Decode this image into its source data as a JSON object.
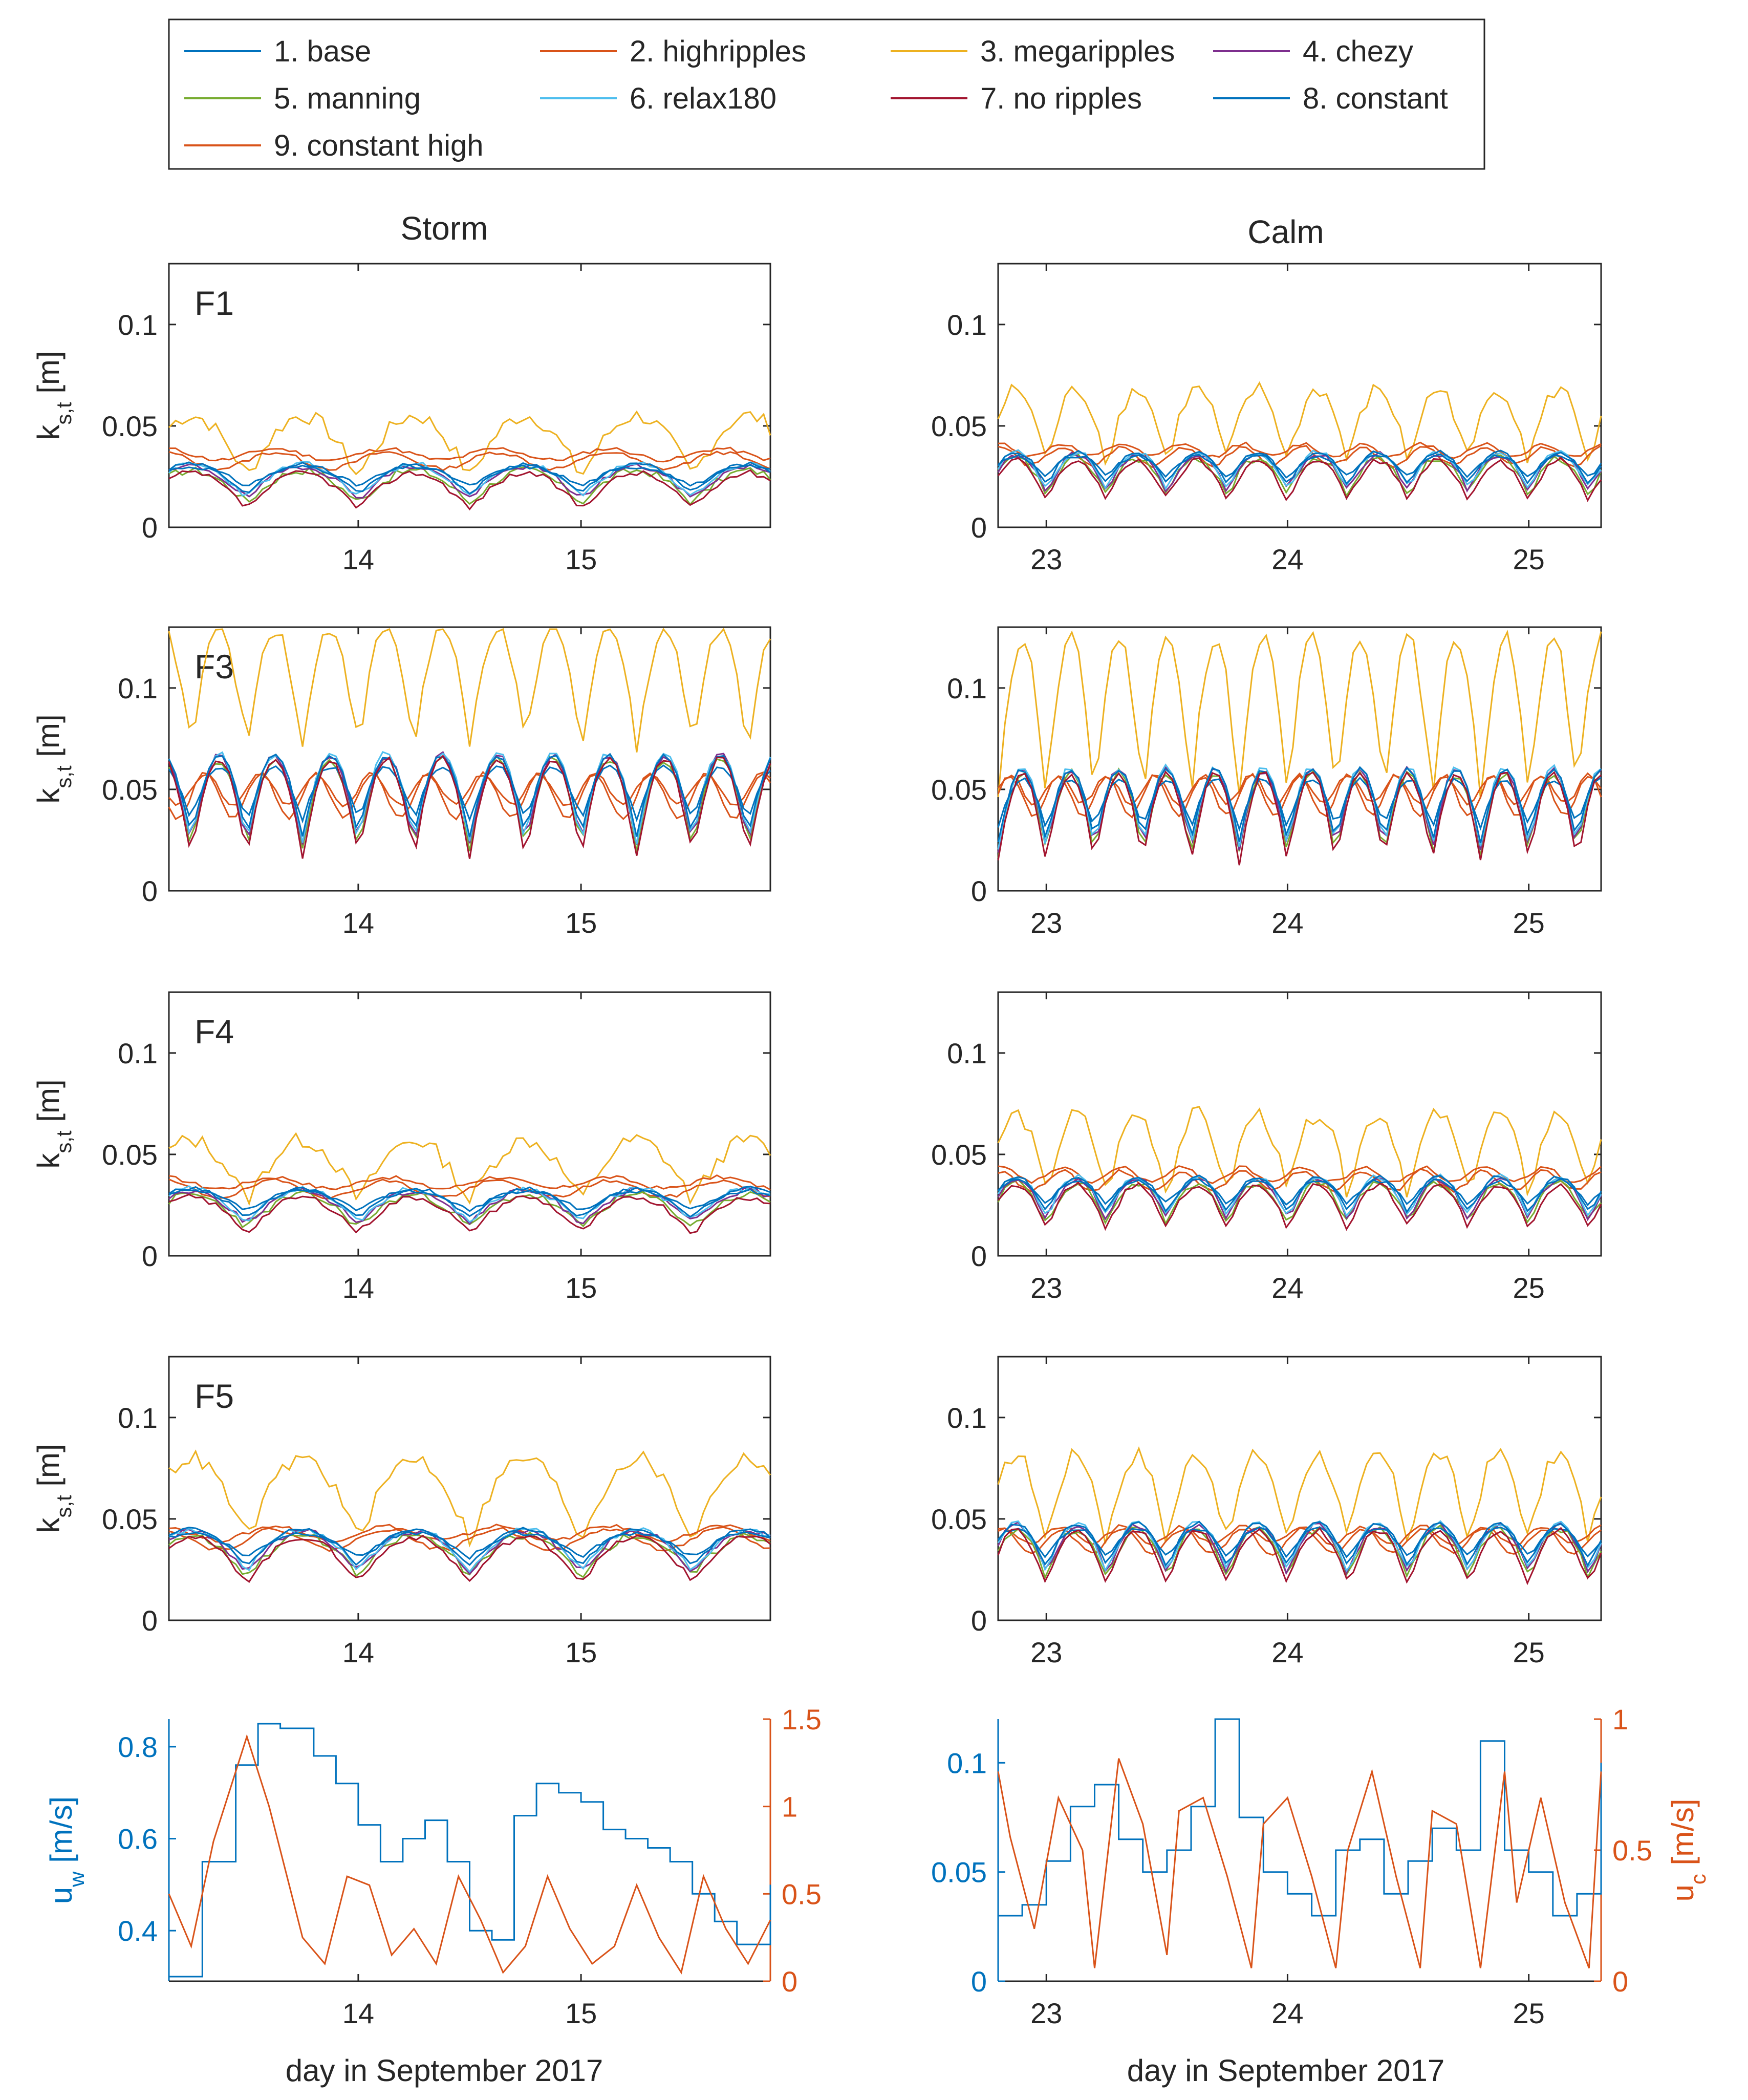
{
  "legend": {
    "items": [
      {
        "label": "1. base",
        "color": "#0072BD"
      },
      {
        "label": "2. highripples",
        "color": "#D95319"
      },
      {
        "label": "3. megaripples",
        "color": "#EDB120"
      },
      {
        "label": "4. chezy",
        "color": "#7E2F8E"
      },
      {
        "label": "5. manning",
        "color": "#77AC30"
      },
      {
        "label": "6. relax180",
        "color": "#4DBEEE"
      },
      {
        "label": "7. no ripples",
        "color": "#A2142F"
      },
      {
        "label": "8. constant",
        "color": "#0072BD"
      },
      {
        "label": "9. constant high",
        "color": "#D95319"
      }
    ]
  },
  "columns": {
    "storm_title": "Storm",
    "calm_title": "Calm"
  },
  "chart_data": {
    "type": "line",
    "ks_ylabel_main": "k",
    "ks_ylabel_sub": "s,t",
    "ks_ylabel_unit": "[m]",
    "ks_ylim": [
      0,
      0.13
    ],
    "ks_yticks": [
      "0",
      "0.05",
      "0.1"
    ],
    "storm_xlim": [
      13.15,
      15.85
    ],
    "calm_xlim": [
      22.8,
      25.3
    ],
    "storm_xticks": [
      "14",
      "15"
    ],
    "calm_xticks": [
      "23",
      "24",
      "25"
    ],
    "rows": [
      {
        "label": "F1",
        "storm": {
          "base": 0.022,
          "amp": 0.008,
          "period": 0.5,
          "mega_base": 0.04,
          "mega_amp": 0.015,
          "high_base": 0.036
        },
        "calm": {
          "base": 0.027,
          "amp": 0.009,
          "period": 0.25,
          "mega_base": 0.05,
          "mega_amp": 0.018,
          "high_base": 0.038
        }
      },
      {
        "label": "F3",
        "storm": {
          "base": 0.045,
          "amp": 0.022,
          "period": 0.25,
          "mega_base": 0.1,
          "mega_amp": 0.03,
          "high_base": 0.05
        },
        "calm": {
          "base": 0.04,
          "amp": 0.02,
          "period": 0.2,
          "mega_base": 0.085,
          "mega_amp": 0.04,
          "high_base": 0.05
        }
      },
      {
        "label": "F4",
        "storm": {
          "base": 0.024,
          "amp": 0.008,
          "period": 0.5,
          "mega_base": 0.042,
          "mega_amp": 0.015,
          "high_base": 0.036
        },
        "calm": {
          "base": 0.028,
          "amp": 0.01,
          "period": 0.25,
          "mega_base": 0.05,
          "mega_amp": 0.02,
          "high_base": 0.04
        }
      },
      {
        "label": "F5",
        "storm": {
          "base": 0.034,
          "amp": 0.01,
          "period": 0.5,
          "mega_base": 0.06,
          "mega_amp": 0.02,
          "high_base": 0.043
        },
        "calm": {
          "base": 0.035,
          "amp": 0.012,
          "period": 0.25,
          "mega_base": 0.06,
          "mega_amp": 0.022,
          "high_base": 0.042
        }
      }
    ],
    "velocity": {
      "uw_label_main": "u",
      "uw_label_sub": "w",
      "uc_label_main": "u",
      "uc_label_sub": "c",
      "unit": "[m/s]",
      "storm": {
        "uw_ylim": [
          0.29,
          0.86
        ],
        "uw_yticks": [
          "0.4",
          "0.6",
          "0.8"
        ],
        "uc_ylim": [
          0,
          1.5
        ],
        "uc_yticks": [
          "0",
          "0.5",
          "1",
          "1.5"
        ],
        "uw": {
          "x": [
            13.15,
            13.3,
            13.45,
            13.55,
            13.65,
            13.8,
            13.9,
            14.0,
            14.1,
            14.2,
            14.3,
            14.4,
            14.5,
            14.6,
            14.7,
            14.8,
            14.9,
            15.0,
            15.1,
            15.2,
            15.3,
            15.4,
            15.5,
            15.6,
            15.7,
            15.85
          ],
          "y": [
            0.3,
            0.55,
            0.76,
            0.85,
            0.84,
            0.78,
            0.72,
            0.63,
            0.55,
            0.6,
            0.64,
            0.55,
            0.4,
            0.38,
            0.65,
            0.72,
            0.7,
            0.68,
            0.62,
            0.6,
            0.58,
            0.55,
            0.48,
            0.42,
            0.37,
            0.5
          ]
        },
        "uc": {
          "x": [
            13.15,
            13.25,
            13.35,
            13.5,
            13.6,
            13.7,
            13.75,
            13.85,
            13.95,
            14.05,
            14.15,
            14.25,
            14.35,
            14.45,
            14.55,
            14.65,
            14.75,
            14.85,
            14.95,
            15.05,
            15.15,
            15.25,
            15.35,
            15.45,
            15.55,
            15.65,
            15.75,
            15.85
          ],
          "y": [
            0.5,
            0.2,
            0.8,
            1.4,
            1.0,
            0.5,
            0.25,
            0.1,
            0.6,
            0.55,
            0.15,
            0.3,
            0.1,
            0.6,
            0.35,
            0.05,
            0.2,
            0.6,
            0.3,
            0.1,
            0.2,
            0.55,
            0.25,
            0.05,
            0.6,
            0.3,
            0.1,
            0.35
          ]
        }
      },
      "calm": {
        "uw_ylim": [
          0,
          0.12
        ],
        "uw_yticks": [
          "0",
          "0.05",
          "0.1"
        ],
        "uc_ylim": [
          0,
          1
        ],
        "uc_yticks": [
          "0",
          "0.5",
          "1"
        ],
        "uw": {
          "x": [
            22.8,
            22.9,
            23.0,
            23.1,
            23.2,
            23.3,
            23.4,
            23.5,
            23.6,
            23.7,
            23.8,
            23.9,
            24.0,
            24.1,
            24.2,
            24.3,
            24.4,
            24.5,
            24.6,
            24.7,
            24.8,
            24.9,
            25.0,
            25.1,
            25.2,
            25.3
          ],
          "y": [
            0.03,
            0.035,
            0.055,
            0.08,
            0.09,
            0.065,
            0.05,
            0.06,
            0.08,
            0.12,
            0.075,
            0.05,
            0.04,
            0.03,
            0.06,
            0.065,
            0.04,
            0.055,
            0.07,
            0.06,
            0.11,
            0.06,
            0.05,
            0.03,
            0.04,
            0.1
          ]
        },
        "uc": {
          "x": [
            22.8,
            22.85,
            22.95,
            23.05,
            23.15,
            23.2,
            23.3,
            23.4,
            23.5,
            23.55,
            23.65,
            23.75,
            23.85,
            23.9,
            24.0,
            24.1,
            24.2,
            24.25,
            24.35,
            24.45,
            24.55,
            24.6,
            24.7,
            24.8,
            24.9,
            24.95,
            25.05,
            25.15,
            25.25,
            25.3
          ],
          "y": [
            0.8,
            0.55,
            0.2,
            0.7,
            0.5,
            0.05,
            0.85,
            0.6,
            0.1,
            0.65,
            0.7,
            0.4,
            0.05,
            0.6,
            0.7,
            0.4,
            0.05,
            0.5,
            0.8,
            0.4,
            0.05,
            0.65,
            0.6,
            0.05,
            0.8,
            0.3,
            0.7,
            0.3,
            0.05,
            0.8
          ]
        }
      }
    },
    "xlabel": "day in September 2017"
  }
}
